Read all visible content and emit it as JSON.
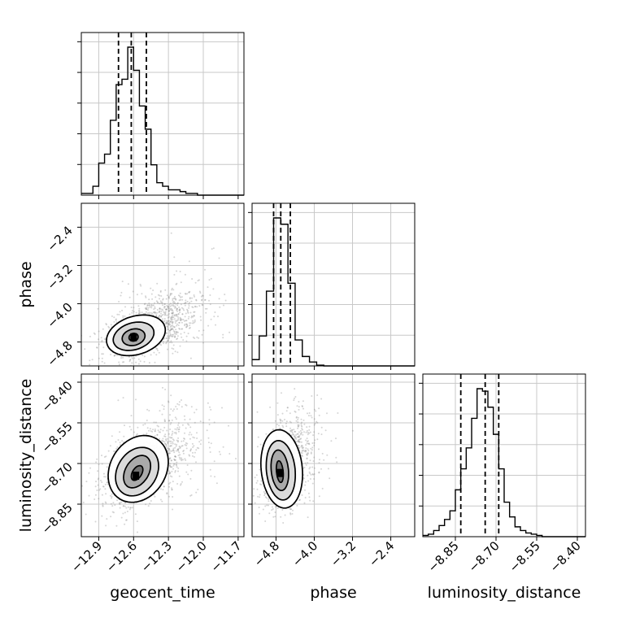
{
  "chart_data": {
    "type": "corner",
    "grid": true,
    "parameters": [
      {
        "name": "geocent_time",
        "range": [
          -13.05,
          -11.65
        ],
        "ticks": [
          -12.9,
          -12.6,
          -12.3,
          -12.0,
          -11.7
        ],
        "tick_labels": [
          "−12.9",
          "−12.6",
          "−12.3",
          "−12.0",
          "−11.7"
        ],
        "quantiles": [
          -12.73,
          -12.62,
          -12.49
        ],
        "histogram": {
          "edges": [
            -13.05,
            -13.0,
            -12.95,
            -12.9,
            -12.85,
            -12.8,
            -12.75,
            -12.7,
            -12.65,
            -12.6,
            -12.55,
            -12.5,
            -12.45,
            -12.4,
            -12.35,
            -12.3,
            -12.25,
            -12.2,
            -12.15,
            -12.1,
            -12.05,
            -12.0,
            -11.95,
            -11.9,
            -11.85,
            -11.8,
            -11.75,
            -11.7,
            -11.65
          ],
          "counts": [
            1,
            1,
            5,
            18,
            23,
            42,
            62,
            65,
            83,
            70,
            50,
            37,
            17,
            7,
            5,
            3,
            3,
            2,
            1,
            1,
            0,
            0,
            0,
            0,
            0,
            0,
            0,
            0
          ]
        }
      },
      {
        "name": "phase",
        "range": [
          -5.3,
          -1.9
        ],
        "ticks": [
          -4.8,
          -4.0,
          -3.2,
          -2.4
        ],
        "tick_labels": [
          "−4.8",
          "−4.0",
          "−3.2",
          "−2.4"
        ],
        "quantiles": [
          -4.85,
          -4.7,
          -4.5
        ],
        "histogram": {
          "edges": [
            -5.3,
            -5.15,
            -5.0,
            -4.85,
            -4.7,
            -4.55,
            -4.4,
            -4.25,
            -4.1,
            -3.95,
            -3.8,
            -3.65,
            -3.5,
            -3.35,
            -3.2,
            -3.05,
            -2.9,
            -2.75,
            -2.6,
            -2.45,
            -2.3,
            -2.15,
            -2.0,
            -1.9
          ],
          "counts": [
            8,
            38,
            95,
            188,
            180,
            105,
            33,
            12,
            5,
            1,
            0,
            0,
            0,
            0,
            0,
            0,
            0,
            0,
            0,
            0,
            0,
            0,
            0
          ]
        }
      },
      {
        "name": "luminosity_distance",
        "range": [
          -8.97,
          -8.37
        ],
        "ticks": [
          -8.85,
          -8.7,
          -8.55,
          -8.4
        ],
        "tick_labels": [
          "−8.85",
          "−8.70",
          "−8.55",
          "−8.40"
        ],
        "quantiles": [
          -8.83,
          -8.74,
          -8.69
        ],
        "histogram": {
          "edges": [
            -8.97,
            -8.95,
            -8.93,
            -8.91,
            -8.89,
            -8.87,
            -8.85,
            -8.83,
            -8.81,
            -8.79,
            -8.77,
            -8.75,
            -8.73,
            -8.71,
            -8.69,
            -8.67,
            -8.65,
            -8.63,
            -8.61,
            -8.59,
            -8.57,
            -8.55,
            -8.53,
            -8.51,
            -8.49,
            -8.47,
            -8.45,
            -8.43,
            -8.41,
            -8.39,
            -8.37
          ],
          "counts": [
            1,
            2,
            5,
            9,
            14,
            21,
            38,
            55,
            72,
            96,
            120,
            118,
            105,
            83,
            55,
            28,
            16,
            8,
            5,
            3,
            2,
            1,
            0,
            0,
            0,
            0,
            0,
            0,
            0,
            0
          ]
        }
      }
    ],
    "pairs": [
      {
        "x": "geocent_time",
        "y": "phase",
        "peak": [
          -12.6,
          -4.7
        ],
        "contours": [
          {
            "center": [
              -12.6,
              -4.7
            ],
            "rx": 0.04,
            "ry": 0.08,
            "angle": 0.25
          },
          {
            "center": [
              -12.6,
              -4.7
            ],
            "rx": 0.1,
            "ry": 0.17,
            "angle": 0.25
          },
          {
            "center": [
              -12.6,
              -4.68
            ],
            "rx": 0.18,
            "ry": 0.28,
            "angle": 0.3
          },
          {
            "center": [
              -12.58,
              -4.66
            ],
            "rx": 0.26,
            "ry": 0.4,
            "angle": 0.3
          }
        ],
        "cloud": {
          "center": [
            -12.45,
            -4.5
          ],
          "sx": 0.2,
          "sy": 0.35,
          "corr": 0.55,
          "extent": [
            -13.05,
            -11.75,
            -5.3,
            -2.4
          ]
        }
      },
      {
        "x": "geocent_time",
        "y": "luminosity_distance",
        "peak": [
          -12.58,
          -8.745
        ],
        "contours": [
          {
            "center": [
              -12.57,
              -8.735
            ],
            "rx": 0.04,
            "ry": 0.03,
            "angle": -0.55
          },
          {
            "center": [
              -12.57,
              -8.73
            ],
            "rx": 0.1,
            "ry": 0.065,
            "angle": -0.55
          },
          {
            "center": [
              -12.57,
              -8.73
            ],
            "rx": 0.17,
            "ry": 0.095,
            "angle": -0.55
          },
          {
            "center": [
              -12.56,
              -8.72
            ],
            "rx": 0.24,
            "ry": 0.13,
            "angle": -0.55
          }
        ],
        "cloud": {
          "center": [
            -12.5,
            -8.71
          ],
          "sx": 0.2,
          "sy": 0.08,
          "corr": 0.5,
          "extent": [
            -13.05,
            -11.7,
            -8.97,
            -8.42
          ]
        }
      },
      {
        "x": "phase",
        "y": "luminosity_distance",
        "peak": [
          -4.72,
          -8.735
        ],
        "contours": [
          {
            "center": [
              -4.72,
              -8.73
            ],
            "rx": 0.07,
            "ry": 0.04,
            "angle": 0.1
          },
          {
            "center": [
              -4.72,
              -8.725
            ],
            "rx": 0.18,
            "ry": 0.075,
            "angle": 0.1
          },
          {
            "center": [
              -4.7,
              -8.725
            ],
            "rx": 0.3,
            "ry": 0.11,
            "angle": 0.1
          },
          {
            "center": [
              -4.68,
              -8.72
            ],
            "rx": 0.43,
            "ry": 0.145,
            "angle": 0.1
          }
        ],
        "cloud": {
          "center": [
            -4.6,
            -8.71
          ],
          "sx": 0.25,
          "sy": 0.08,
          "corr": 0.25,
          "extent": [
            -5.3,
            -2.4,
            -8.97,
            -8.42
          ]
        }
      }
    ],
    "colors": {
      "points": "#888888",
      "line": "#000000",
      "grid": "#c8c8c8"
    }
  }
}
